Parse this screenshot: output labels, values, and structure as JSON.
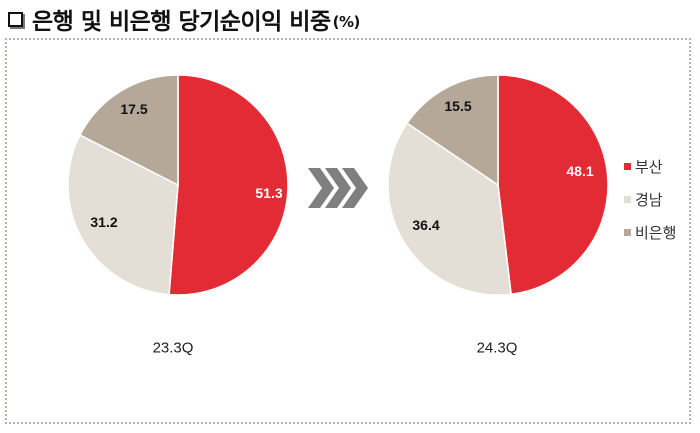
{
  "title": {
    "text": "은행 및 비은행 당기순이익 비중",
    "unit": "(%)"
  },
  "legend": [
    {
      "label": "부산",
      "color": "#e32b35"
    },
    {
      "label": "경남",
      "color": "#e3ded6"
    },
    {
      "label": "비은행",
      "color": "#b5a898"
    }
  ],
  "arrow_icon": "triple-chevron-right",
  "charts": [
    {
      "period": "23.3Q",
      "values": {
        "부산": "51.3",
        "경남": "31.2",
        "비은행": "17.5"
      }
    },
    {
      "period": "24.3Q",
      "values": {
        "부산": "48.1",
        "경남": "36.4",
        "비은행": "15.5"
      }
    }
  ],
  "chart_data": [
    {
      "type": "pie",
      "title": "은행 및 비은행 당기순이익 비중(%)",
      "subtitle": "23.3Q",
      "categories": [
        "부산",
        "경남",
        "비은행"
      ],
      "values": [
        51.3,
        31.2,
        17.5
      ],
      "colors": [
        "#e32b35",
        "#e3ded6",
        "#b5a898"
      ],
      "legend_position": "right"
    },
    {
      "type": "pie",
      "title": "은행 및 비은행 당기순이익 비중(%)",
      "subtitle": "24.3Q",
      "categories": [
        "부산",
        "경남",
        "비은행"
      ],
      "values": [
        48.1,
        36.4,
        15.5
      ],
      "colors": [
        "#e32b35",
        "#e3ded6",
        "#b5a898"
      ],
      "legend_position": "right"
    }
  ]
}
